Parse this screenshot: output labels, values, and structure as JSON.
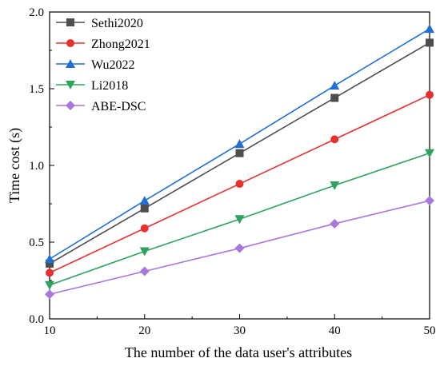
{
  "chart_data": {
    "type": "line",
    "xlabel": "The number of the data user's attributes",
    "ylabel": "Time cost (s)",
    "x": [
      10,
      20,
      30,
      40,
      50
    ],
    "xlim": [
      10,
      50
    ],
    "ylim": [
      0,
      2.0
    ],
    "xticks": [
      "10",
      "20",
      "30",
      "40",
      "50"
    ],
    "yticks": [
      "0.0",
      "0.5",
      "1.0",
      "1.5",
      "2.0"
    ],
    "grid": false,
    "legend_position": "top-left",
    "series": [
      {
        "name": "Sethi2020",
        "color": "#4d4d4d",
        "marker": "square",
        "values": [
          0.36,
          0.72,
          1.08,
          1.44,
          1.8
        ]
      },
      {
        "name": "Zhong2021",
        "color": "#e8312f",
        "marker": "circle",
        "values": [
          0.3,
          0.59,
          0.88,
          1.17,
          1.46
        ]
      },
      {
        "name": "Wu2022",
        "color": "#1f6fd6",
        "marker": "triangle-up",
        "values": [
          0.39,
          0.77,
          1.14,
          1.52,
          1.89
        ]
      },
      {
        "name": "Li2018",
        "color": "#2ea35f",
        "marker": "triangle-down",
        "values": [
          0.22,
          0.44,
          0.65,
          0.87,
          1.08
        ]
      },
      {
        "name": "ABE-DSC",
        "color": "#a877dd",
        "marker": "diamond",
        "values": [
          0.16,
          0.31,
          0.46,
          0.62,
          0.77
        ]
      }
    ]
  }
}
